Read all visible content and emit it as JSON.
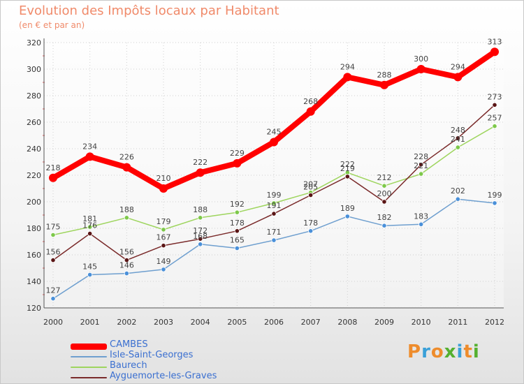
{
  "header": {
    "title": "Evolution des Impôts locaux par Habitant",
    "subtitle": "(en € et par an)"
  },
  "brand": {
    "letters": [
      "P",
      "r",
      "o",
      "x",
      "i",
      "t",
      "i"
    ],
    "colors": [
      "#ee8c2c",
      "#3aa0d8",
      "#ee8c2c",
      "#55b030",
      "#3aa0d8",
      "#ee8c2c",
      "#55b030"
    ]
  },
  "chart_data": {
    "type": "line",
    "title": "Evolution des Impôts locaux par Habitant",
    "subtitle": "(en € et par an)",
    "xlabel": "",
    "ylabel": "",
    "x": [
      "2000",
      "2001",
      "2002",
      "2003",
      "2004",
      "2005",
      "2006",
      "2007",
      "2008",
      "2009",
      "2010",
      "2011",
      "2012"
    ],
    "ylim": [
      120,
      320
    ],
    "yticks": [
      "120",
      "140",
      "160",
      "180",
      "200",
      "220",
      "240",
      "260",
      "280",
      "300",
      "320"
    ],
    "grid": true,
    "legend_position": "bottom-left",
    "series": [
      {
        "name": "CAMBES",
        "color": "#ff0000",
        "values": [
          218,
          234,
          226,
          210,
          222,
          229,
          245,
          268,
          294,
          288,
          300,
          294,
          313
        ],
        "labels": [
          "218",
          "234",
          "226",
          "210",
          "222",
          "229",
          "245",
          "268",
          "294",
          "288",
          "300",
          "294",
          "313"
        ]
      },
      {
        "name": "Isle-Saint-Georges",
        "color": "#6e9fcf",
        "values": [
          127,
          145,
          146,
          149,
          168,
          165,
          171,
          178,
          189,
          182,
          183,
          202,
          199
        ],
        "labels": [
          "127",
          "145",
          "146",
          "149",
          "168",
          "165",
          "171",
          "178",
          "189",
          "182",
          "183",
          "202",
          "199"
        ]
      },
      {
        "name": "Baurech",
        "color": "#9ed55e",
        "values": [
          175,
          181,
          188,
          179,
          188,
          192,
          199,
          207,
          222,
          212,
          221,
          241,
          257
        ],
        "labels": [
          "175",
          "181",
          "188",
          "179",
          "188",
          "192",
          "199",
          "207",
          "222",
          "212",
          "221",
          "241",
          "257"
        ]
      },
      {
        "name": "Ayguemorte-les-Graves",
        "color": "#7a2a2a",
        "values": [
          156,
          176,
          156,
          167,
          172,
          178,
          191,
          205,
          219,
          200,
          228,
          248,
          273
        ],
        "labels": [
          "156",
          "176",
          "156",
          "167",
          "172",
          "178",
          "191",
          "205",
          "219",
          "200",
          "228",
          "248",
          "273"
        ]
      }
    ]
  }
}
